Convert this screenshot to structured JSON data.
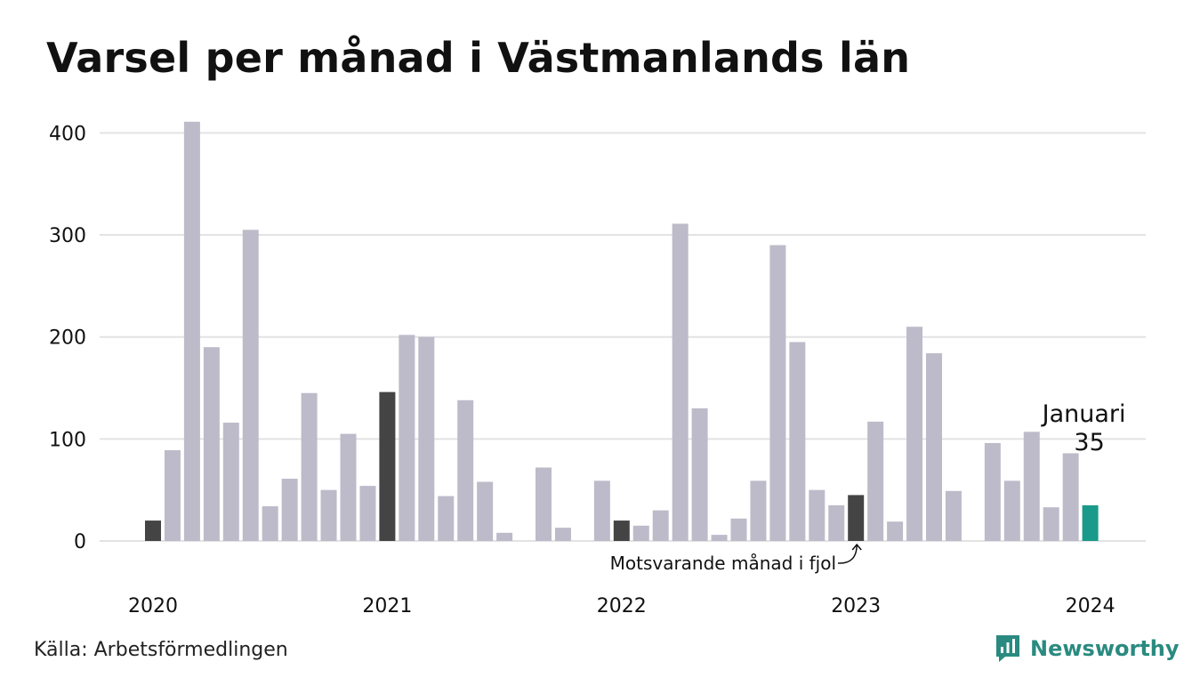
{
  "title": "Varsel per månad i Västmanlands län",
  "source": "Källa: Arbetsförmedlingen",
  "brand": "Newsworthy",
  "colors": {
    "default_bar": "#bdbbc9",
    "highlight_bar": "#444444",
    "current_bar": "#1a9a8a",
    "gridline": "#e3e3e3",
    "brand": "#2a8a80"
  },
  "annotations": {
    "current_month": "Januari",
    "current_value": "35",
    "comparison_label": "Motsvarande månad i fjol"
  },
  "chart_data": {
    "type": "bar",
    "title": "Varsel per månad i Västmanlands län",
    "xlabel": "",
    "ylabel": "",
    "ylim": [
      0,
      420
    ],
    "yticks": [
      0,
      100,
      200,
      300,
      400
    ],
    "xtick_labels": [
      "2020",
      "2021",
      "2022",
      "2023",
      "2024"
    ],
    "grid": true,
    "categories": [
      "2020-01",
      "2020-02",
      "2020-03",
      "2020-04",
      "2020-05",
      "2020-06",
      "2020-07",
      "2020-08",
      "2020-09",
      "2020-10",
      "2020-11",
      "2020-12",
      "2021-01",
      "2021-02",
      "2021-03",
      "2021-04",
      "2021-05",
      "2021-06",
      "2021-07",
      "2021-08",
      "2021-09",
      "2021-10",
      "2021-11",
      "2021-12",
      "2022-01",
      "2022-02",
      "2022-03",
      "2022-04",
      "2022-05",
      "2022-06",
      "2022-07",
      "2022-08",
      "2022-09",
      "2022-10",
      "2022-11",
      "2022-12",
      "2023-01",
      "2023-02",
      "2023-03",
      "2023-04",
      "2023-05",
      "2023-06",
      "2023-07",
      "2023-08",
      "2023-09",
      "2023-10",
      "2023-11",
      "2023-12",
      "2024-01"
    ],
    "values": [
      20,
      89,
      411,
      190,
      116,
      305,
      34,
      61,
      145,
      50,
      105,
      54,
      146,
      202,
      200,
      44,
      138,
      58,
      8,
      0,
      72,
      13,
      0,
      59,
      20,
      15,
      30,
      311,
      130,
      6,
      22,
      59,
      290,
      195,
      50,
      35,
      45,
      117,
      19,
      210,
      184,
      49,
      0,
      96,
      59,
      107,
      33,
      86,
      35
    ],
    "highlight_months": [
      "2020-01",
      "2021-01",
      "2022-01",
      "2023-01"
    ],
    "current_month": "2024-01"
  }
}
